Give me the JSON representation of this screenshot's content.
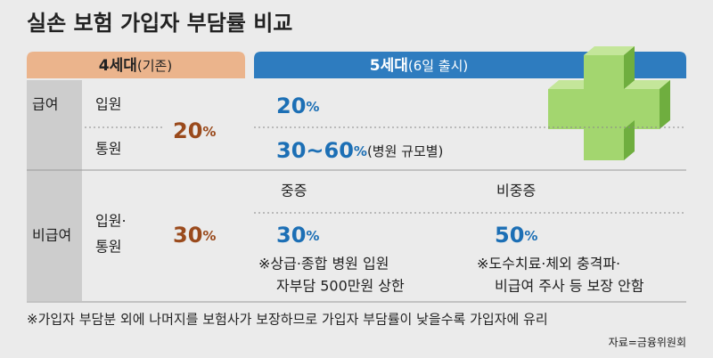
{
  "title": "실손 보험 가입자 부담률 비교",
  "columns": [
    {
      "name": "4세대",
      "note": "(기존)"
    },
    {
      "name": "5세대",
      "note": "(6일 출시)"
    }
  ],
  "rows": [
    {
      "label": "급여",
      "items": [
        "입원",
        "통원"
      ],
      "gen4": {
        "number": "20",
        "unit": "%"
      },
      "gen5": [
        {
          "number": "20",
          "unit": "%"
        },
        {
          "number": "30~60",
          "unit": "%",
          "note": "(병원 규모별)"
        }
      ]
    },
    {
      "label": "비급여",
      "items": [
        "입원·",
        "통원"
      ],
      "gen4": {
        "number": "30",
        "unit": "%"
      },
      "gen5": {
        "categories": [
          "중증",
          "비중증"
        ],
        "cells": [
          {
            "number": "30",
            "unit": "%",
            "notes": [
              "※상급·종합 병원 입원",
              "자부담 500만원 상한"
            ]
          },
          {
            "number": "50",
            "unit": "%",
            "notes": [
              "※도수치료·체외 충격파·",
              "비급여 주사 등 보장 안함"
            ]
          }
        ]
      }
    }
  ],
  "footnote": "※가입자 부담분 외에 나머지를 보험사가 보장하므로 가입자 부담률이 낮을수록 가입자에 유리",
  "source": "자료=금융위원회"
}
